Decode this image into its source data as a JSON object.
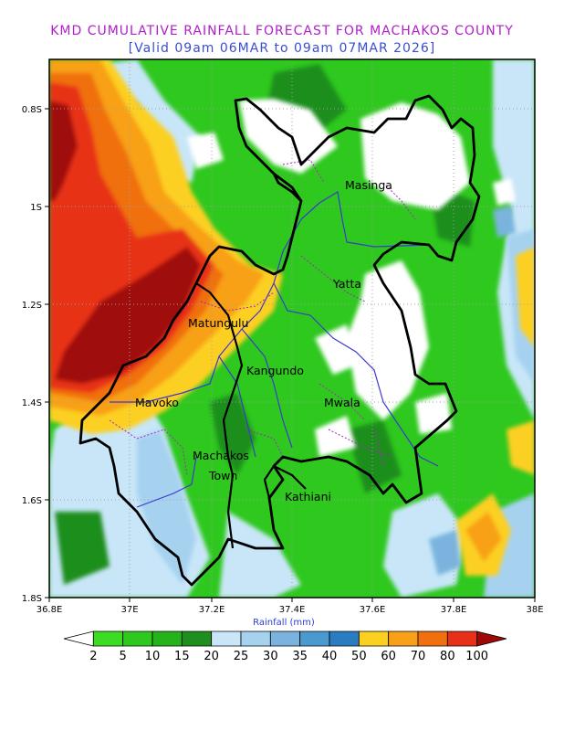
{
  "title": "KMD CUMULATIVE RAINFALL FORECAST FOR MACHAKOS COUNTY",
  "subtitle": "[Valid 09am 06MAR to 09am 07MAR 2026]",
  "map": {
    "lat_ticks": [
      "0.8S",
      "1S",
      "1.2S",
      "1.4S",
      "1.6S",
      "1.8S"
    ],
    "lon_ticks": [
      "36.8E",
      "37E",
      "37.2E",
      "37.4E",
      "37.6E",
      "37.8E",
      "38E"
    ],
    "colorbar_label": "Rainfall (mm)",
    "places": [
      {
        "name": "Masinga"
      },
      {
        "name": "Yatta"
      },
      {
        "name": "Matungulu"
      },
      {
        "name": "Kangundo"
      },
      {
        "name": "Mavoko"
      },
      {
        "name": "Mwala"
      },
      {
        "name": "Machakos"
      },
      {
        "name": "Town"
      },
      {
        "name": "Kathiani"
      }
    ]
  },
  "legend": {
    "levels": [
      "2",
      "5",
      "10",
      "15",
      "20",
      "25",
      "30",
      "35",
      "40",
      "50",
      "60",
      "70",
      "80",
      "100"
    ],
    "colors": [
      "#ffffff",
      "#3cdc22",
      "#2ec81e",
      "#25b21a",
      "#1e8e1e",
      "#c8e6f8",
      "#a6d2f0",
      "#7ab4de",
      "#4a9ad0",
      "#2a7cc0",
      "#fcd020",
      "#f8a018",
      "#f07010",
      "#e83018",
      "#a00808"
    ],
    "range_units": "mm"
  }
}
